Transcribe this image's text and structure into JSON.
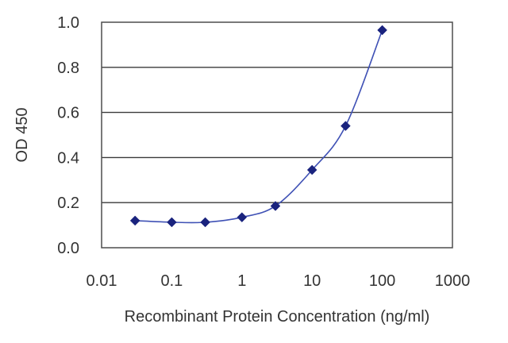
{
  "chart_data": {
    "type": "line",
    "xlabel": "Recombinant Protein Concentration (ng/ml)",
    "ylabel": "OD 450",
    "xscale": "log",
    "xlim": [
      0.01,
      1000
    ],
    "ylim": [
      0.0,
      1.0
    ],
    "x_ticks": [
      "0.01",
      "0.1",
      "1",
      "10",
      "100",
      "1000"
    ],
    "y_ticks": [
      "0.0",
      "0.2",
      "0.4",
      "0.6",
      "0.8",
      "1.0"
    ],
    "grid": "horizontal",
    "legend": "none",
    "series": [
      {
        "color": "#1a237e",
        "marker": "diamond",
        "points": [
          {
            "x": 0.03,
            "y": 0.12
          },
          {
            "x": 0.1,
            "y": 0.113
          },
          {
            "x": 0.3,
            "y": 0.113
          },
          {
            "x": 1,
            "y": 0.135
          },
          {
            "x": 3,
            "y": 0.185
          },
          {
            "x": 10,
            "y": 0.345
          },
          {
            "x": 30,
            "y": 0.54
          },
          {
            "x": 100,
            "y": 0.965
          }
        ]
      }
    ]
  }
}
